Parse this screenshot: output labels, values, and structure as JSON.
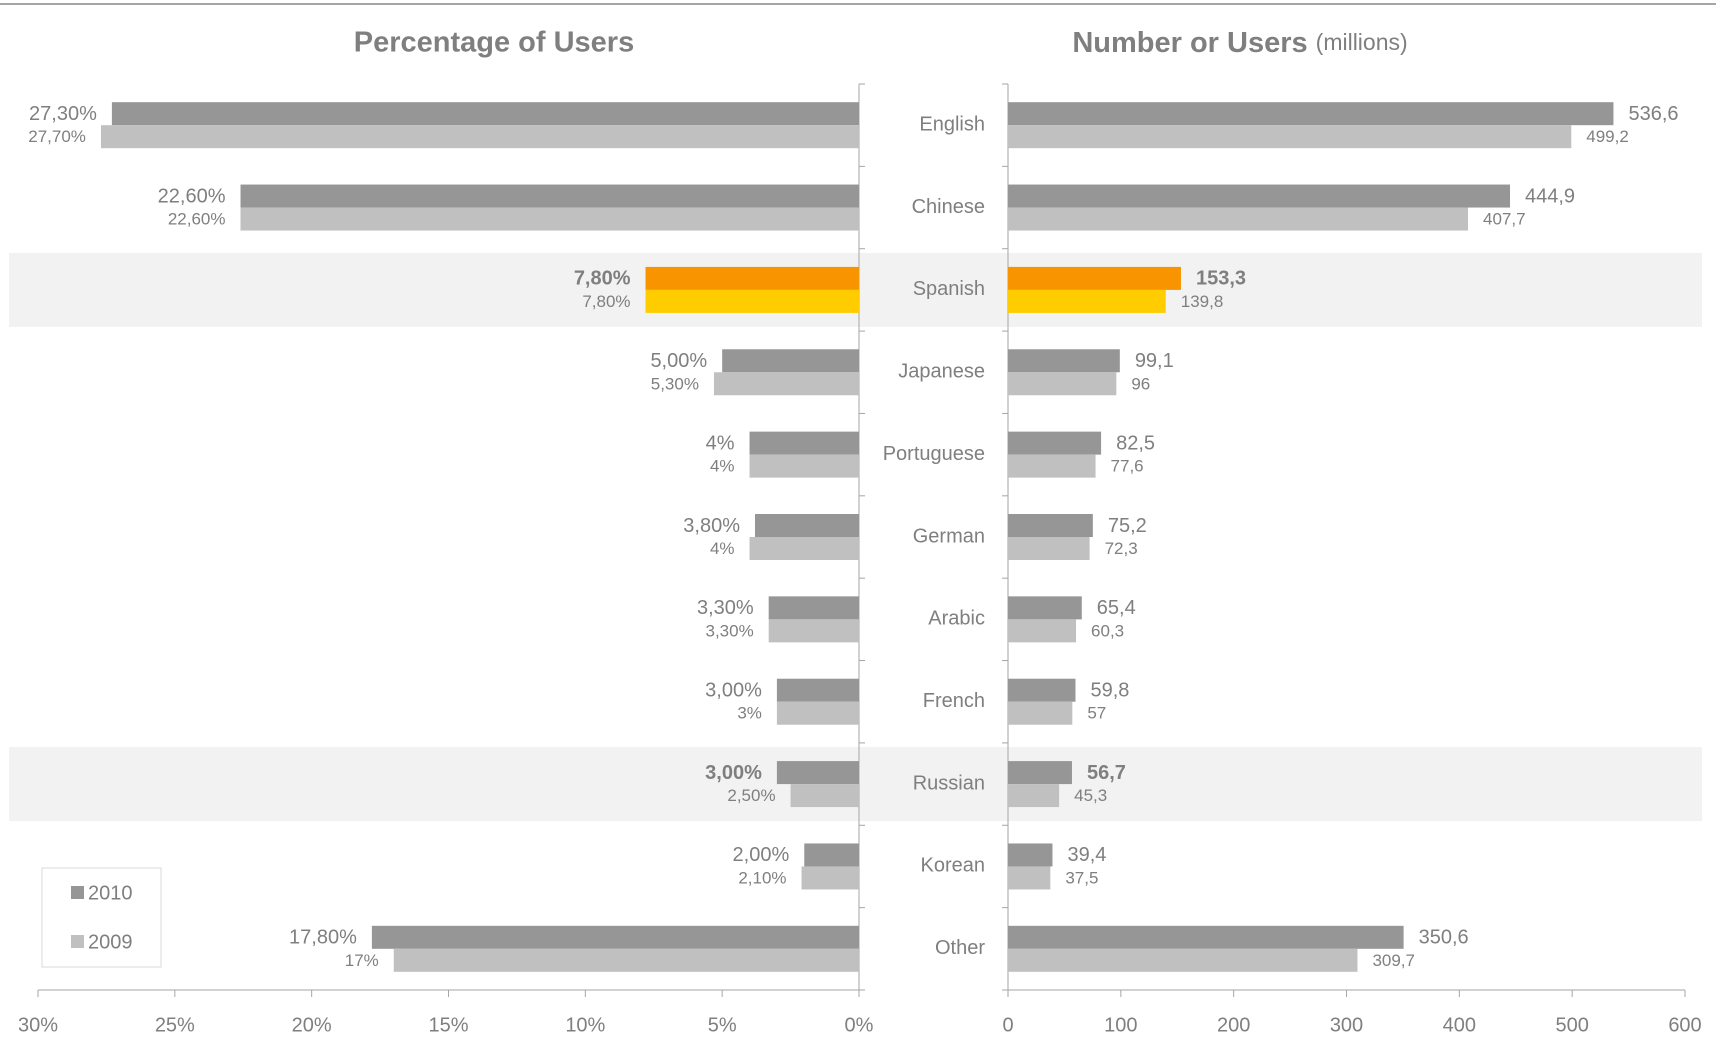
{
  "chart_data": [
    {
      "type": "bar",
      "orientation": "horizontal",
      "title": "Percentage of Users",
      "series": [
        {
          "name": "2010",
          "colors": [
            "#969696",
            "#969696",
            "#f79400",
            "#969696",
            "#969696",
            "#969696",
            "#969696",
            "#969696",
            "#969696",
            "#969696",
            "#969696"
          ],
          "values": [
            27.3,
            22.6,
            7.8,
            5.0,
            4,
            3.8,
            3.3,
            3.0,
            3.0,
            2.0,
            17.8
          ],
          "value_labels": [
            "27,30%",
            "22,60%",
            "7,80%",
            "5,00%",
            "4%",
            "3,80%",
            "3,30%",
            "3,00%",
            "3,00%",
            "2,00%",
            "17,80%"
          ],
          "bold": [
            2,
            8
          ]
        },
        {
          "name": "2009",
          "colors": [
            "#c0c0c0",
            "#c0c0c0",
            "#ffcc00",
            "#c0c0c0",
            "#c0c0c0",
            "#c0c0c0",
            "#c0c0c0",
            "#c0c0c0",
            "#c0c0c0",
            "#c0c0c0",
            "#c0c0c0"
          ],
          "values": [
            27.7,
            22.6,
            7.8,
            5.3,
            4,
            4,
            3.3,
            3,
            2.5,
            2.1,
            17
          ],
          "value_labels": [
            "27,70%",
            "22,60%",
            "7,80%",
            "5,30%",
            "4%",
            "4%",
            "3,30%",
            "3%",
            "2,50%",
            "2,10%",
            "17%"
          ],
          "bold": []
        }
      ],
      "xlim": [
        30,
        0
      ],
      "xticks": [
        {
          "value": 30,
          "label": "30%"
        },
        {
          "value": 25,
          "label": "25%"
        },
        {
          "value": 20,
          "label": "20%"
        },
        {
          "value": 15,
          "label": "15%"
        },
        {
          "value": 10,
          "label": "10%"
        },
        {
          "value": 5,
          "label": "5%"
        },
        {
          "value": 0,
          "label": "0%"
        }
      ],
      "legend": "lower left",
      "shaded_rows": [
        2,
        8
      ]
    },
    {
      "type": "bar",
      "orientation": "horizontal",
      "title": "Number or Users",
      "subtitle": "(millions)",
      "categories": [
        "English",
        "Chinese",
        "Spanish",
        "Japanese",
        "Portuguese",
        "German",
        "Arabic",
        "French",
        "Russian",
        "Korean",
        "Other"
      ],
      "series": [
        {
          "colors": [
            "#969696",
            "#969696",
            "#f79400",
            "#969696",
            "#969696",
            "#969696",
            "#969696",
            "#969696",
            "#969696",
            "#969696",
            "#969696"
          ],
          "values": [
            536.6,
            444.9,
            153.3,
            99.1,
            82.5,
            75.2,
            65.4,
            59.8,
            56.7,
            39.4,
            350.6
          ],
          "value_labels": [
            "536,6",
            "444,9",
            "153,3",
            "99,1",
            "82,5",
            "75,2",
            "65,4",
            "59,8",
            "56,7",
            "39,4",
            "350,6"
          ],
          "bold": [
            2,
            8
          ]
        },
        {
          "colors": [
            "#c0c0c0",
            "#c0c0c0",
            "#ffcc00",
            "#c0c0c0",
            "#c0c0c0",
            "#c0c0c0",
            "#c0c0c0",
            "#c0c0c0",
            "#c0c0c0",
            "#c0c0c0",
            "#c0c0c0"
          ],
          "values": [
            499.2,
            407.7,
            139.8,
            96,
            77.6,
            72.3,
            60.3,
            57,
            45.3,
            37.5,
            309.7
          ],
          "value_labels": [
            "499,2",
            "407,7",
            "139,8",
            "96",
            "77,6",
            "72,3",
            "60,3",
            "57",
            "45,3",
            "37,5",
            "309,7"
          ],
          "bold": []
        }
      ],
      "xlim": [
        0,
        600
      ],
      "xticks": [
        0,
        100,
        200,
        300,
        400,
        500,
        600
      ],
      "shaded_rows": [
        2,
        8
      ]
    }
  ]
}
